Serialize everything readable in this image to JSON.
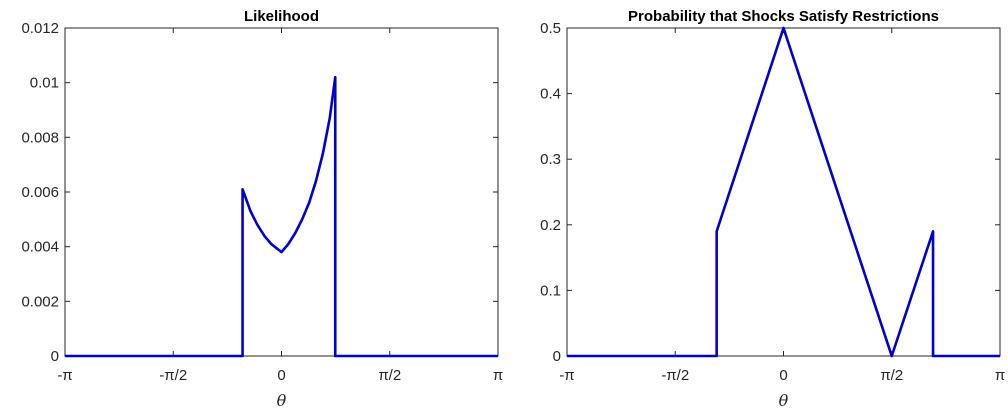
{
  "chart_data": [
    {
      "type": "line",
      "title": "Likelihood",
      "xlabel": "θ",
      "ylabel": "",
      "xlim": [
        -3.14159,
        3.14159
      ],
      "ylim": [
        0,
        0.012
      ],
      "xticks": [
        -3.14159,
        -1.5708,
        0,
        1.5708,
        3.14159
      ],
      "xtick_labels": [
        "-π",
        "-π/2",
        "0",
        "π/2",
        "π"
      ],
      "yticks": [
        0,
        0.002,
        0.004,
        0.006,
        0.008,
        0.01,
        0.012
      ],
      "ytick_labels": [
        "0",
        "0.002",
        "0.004",
        "0.006",
        "0.008",
        "0.01",
        "0.012"
      ],
      "grid": false,
      "series": [
        {
          "color": "#0000cc",
          "x": [
            -3.14159,
            -0.565,
            -0.5649,
            -0.45,
            -0.35,
            -0.25,
            -0.15,
            -0.05,
            0,
            0.1,
            0.2,
            0.3,
            0.4,
            0.5,
            0.6,
            0.7,
            0.7799,
            0.78,
            3.14159
          ],
          "y": [
            0,
            0,
            0.0061,
            0.0053,
            0.0048,
            0.0044,
            0.0041,
            0.0039,
            0.0038,
            0.0041,
            0.0045,
            0.005,
            0.0056,
            0.0064,
            0.0074,
            0.0087,
            0.0102,
            0,
            0
          ]
        }
      ]
    },
    {
      "type": "line",
      "title": "Probability that Shocks Satisfy Restrictions",
      "xlabel": "θ",
      "ylabel": "",
      "xlim": [
        -3.14159,
        3.14159
      ],
      "ylim": [
        0,
        0.5
      ],
      "xticks": [
        -3.14159,
        -1.5708,
        0,
        1.5708,
        3.14159
      ],
      "xtick_labels": [
        "-π",
        "-π/2",
        "0",
        "π/2",
        "π"
      ],
      "yticks": [
        0,
        0.1,
        0.2,
        0.3,
        0.4,
        0.5
      ],
      "ytick_labels": [
        "0",
        "0.1",
        "0.2",
        "0.3",
        "0.4",
        "0.5"
      ],
      "grid": false,
      "series": [
        {
          "color": "#0000cc",
          "x": [
            -3.14159,
            -0.97,
            -0.9699,
            0,
            1.5708,
            2.17,
            2.1701,
            3.14159
          ],
          "y": [
            0,
            0,
            0.19,
            0.5,
            0,
            0.19,
            0,
            0
          ]
        }
      ]
    }
  ]
}
